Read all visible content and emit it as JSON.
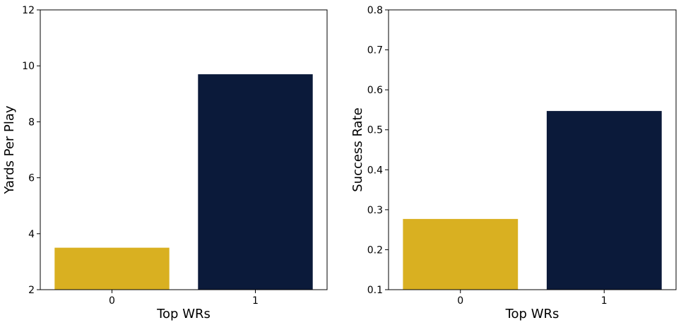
{
  "chart_data": [
    {
      "type": "bar",
      "categories": [
        "0",
        "1"
      ],
      "values": [
        3.5,
        9.7
      ],
      "colors": [
        "#d9b021",
        "#0b1a3a"
      ],
      "xlabel": "Top WRs",
      "ylabel": "Yards Per Play",
      "ylim": [
        2,
        12
      ],
      "yticks": [
        "2",
        "4",
        "6",
        "8",
        "10",
        "12"
      ],
      "grid": false
    },
    {
      "type": "bar",
      "categories": [
        "0",
        "1"
      ],
      "values": [
        0.277,
        0.547
      ],
      "colors": [
        "#d9b021",
        "#0b1a3a"
      ],
      "xlabel": "Top WRs",
      "ylabel": "Success Rate",
      "ylim": [
        0.1,
        0.8
      ],
      "yticks": [
        "0.1",
        "0.2",
        "0.3",
        "0.4",
        "0.5",
        "0.6",
        "0.7",
        "0.8"
      ],
      "grid": false
    }
  ]
}
